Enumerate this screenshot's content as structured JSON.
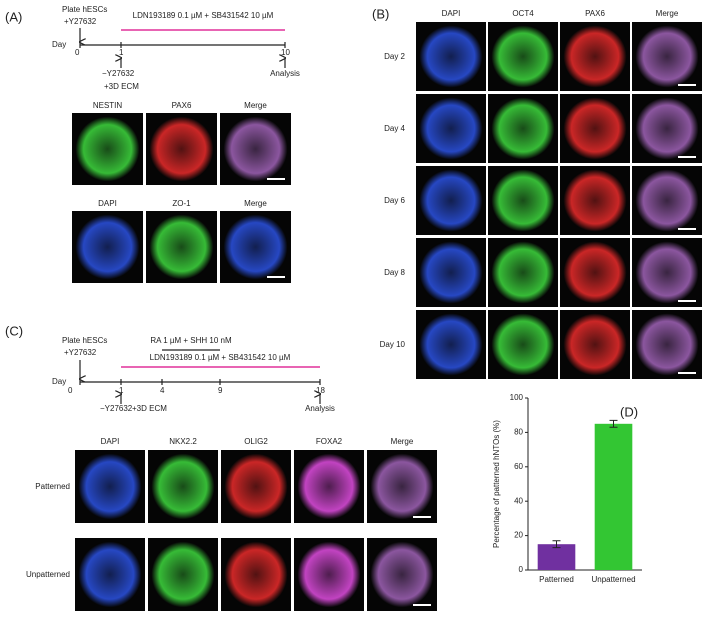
{
  "panel_a": {
    "label": "(A)",
    "timeline": {
      "plate": "Plate hESCs",
      "add_y": "+Y27632",
      "treatment": "LDN193189 0.1 µM + SB431542 10 µM",
      "day": "Day",
      "days": [
        "0",
        "1",
        "10"
      ],
      "minus_y": "−Y27632",
      "ecm": "+3D ECM",
      "analysis": "Analysis"
    },
    "row1": [
      "NESTIN",
      "PAX6",
      "Merge"
    ],
    "row2": [
      "DAPI",
      "ZO-1",
      "Merge"
    ]
  },
  "panel_b": {
    "label": "(B)",
    "columns": [
      "DAPI",
      "OCT4",
      "PAX6",
      "Merge"
    ],
    "rows": [
      "Day 2",
      "Day 4",
      "Day 6",
      "Day 8",
      "Day 10"
    ]
  },
  "panel_c": {
    "label": "(C)",
    "timeline": {
      "plate": "Plate hESCs",
      "add_y": "+Y27632",
      "treatment1": "RA 1 µM + SHH 10 nM",
      "treatment2": "LDN193189 0.1 µM + SB431542 10 µM",
      "day": "Day",
      "days": [
        "0",
        "1",
        "4",
        "9",
        "18"
      ],
      "minus_y": "−Y27632",
      "ecm": "+3D ECM",
      "analysis": "Analysis"
    },
    "columns": [
      "DAPI",
      "NKX2.2",
      "OLIG2",
      "FOXA2",
      "Merge"
    ],
    "rows": [
      "Patterned",
      "Unpatterned"
    ]
  },
  "chart_data": {
    "type": "bar",
    "panel_label": "(D)",
    "y_label": "Percentage of patterned hNTOs (%)",
    "categories": [
      "Patterned",
      "Unpatterned"
    ],
    "values": [
      15,
      85
    ],
    "errors": [
      2,
      2
    ],
    "colors": [
      "#7030a0",
      "#33c633"
    ],
    "ylim": [
      0,
      100
    ],
    "yticks": [
      0,
      20,
      40,
      60,
      80,
      100
    ]
  }
}
